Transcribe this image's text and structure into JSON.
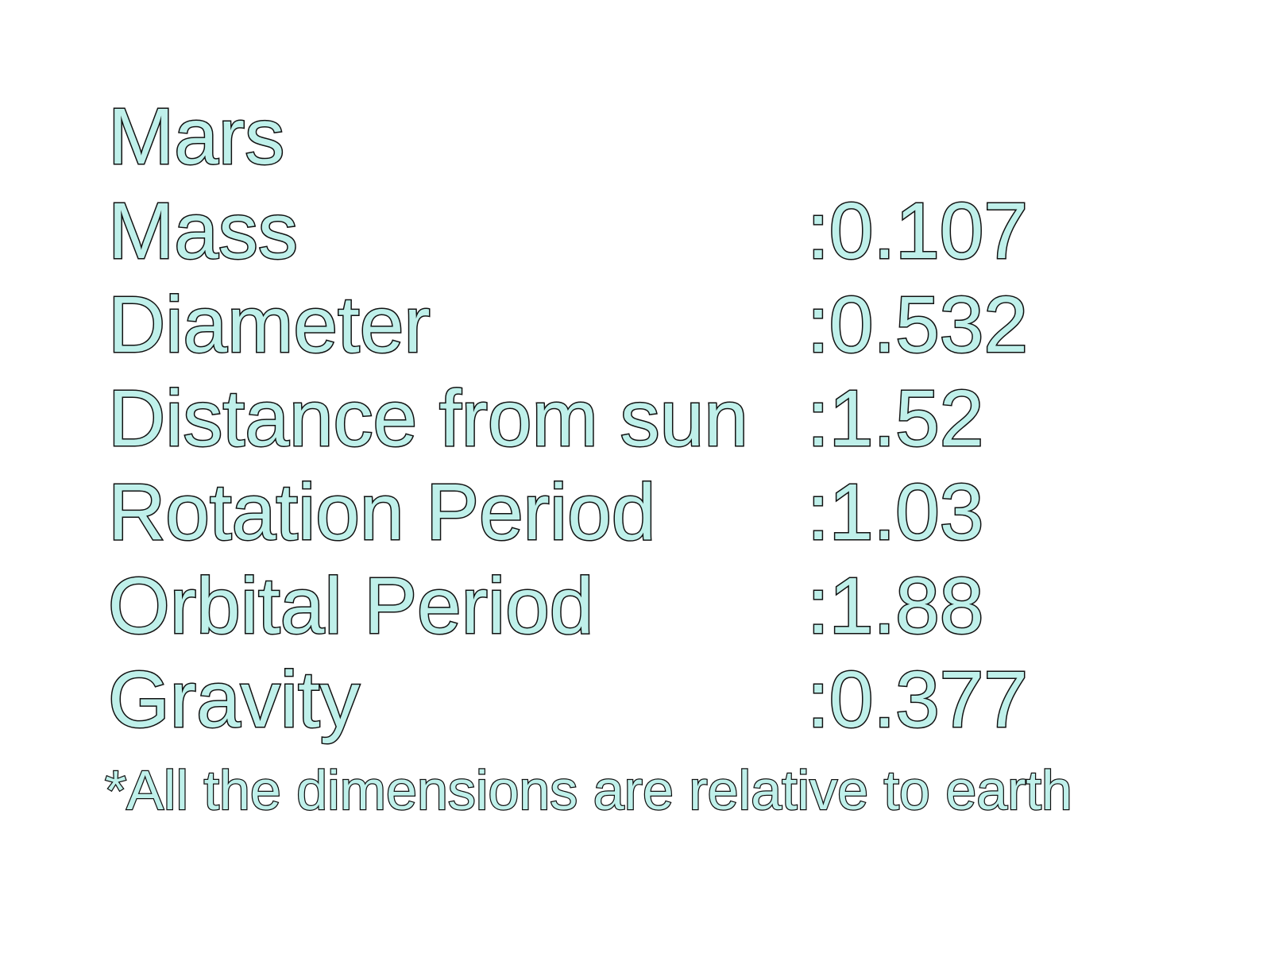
{
  "slide": {
    "title": "Mars",
    "rows": [
      {
        "label": "Mass",
        "value": ":0.107"
      },
      {
        "label": "Diameter",
        "value": ":0.532"
      },
      {
        "label": "Distance from sun",
        "value": ":1.52"
      },
      {
        "label": "Rotation Period",
        "value": ":1.03"
      },
      {
        "label": "Orbital Period",
        "value": ":1.88"
      },
      {
        "label": "Gravity",
        "value": ":0.377"
      }
    ],
    "footnote": "*All the dimensions are relative to earth"
  },
  "colors": {
    "text_fill": "#bff0ea",
    "text_outline": "#111111",
    "background": "#ffffff"
  }
}
